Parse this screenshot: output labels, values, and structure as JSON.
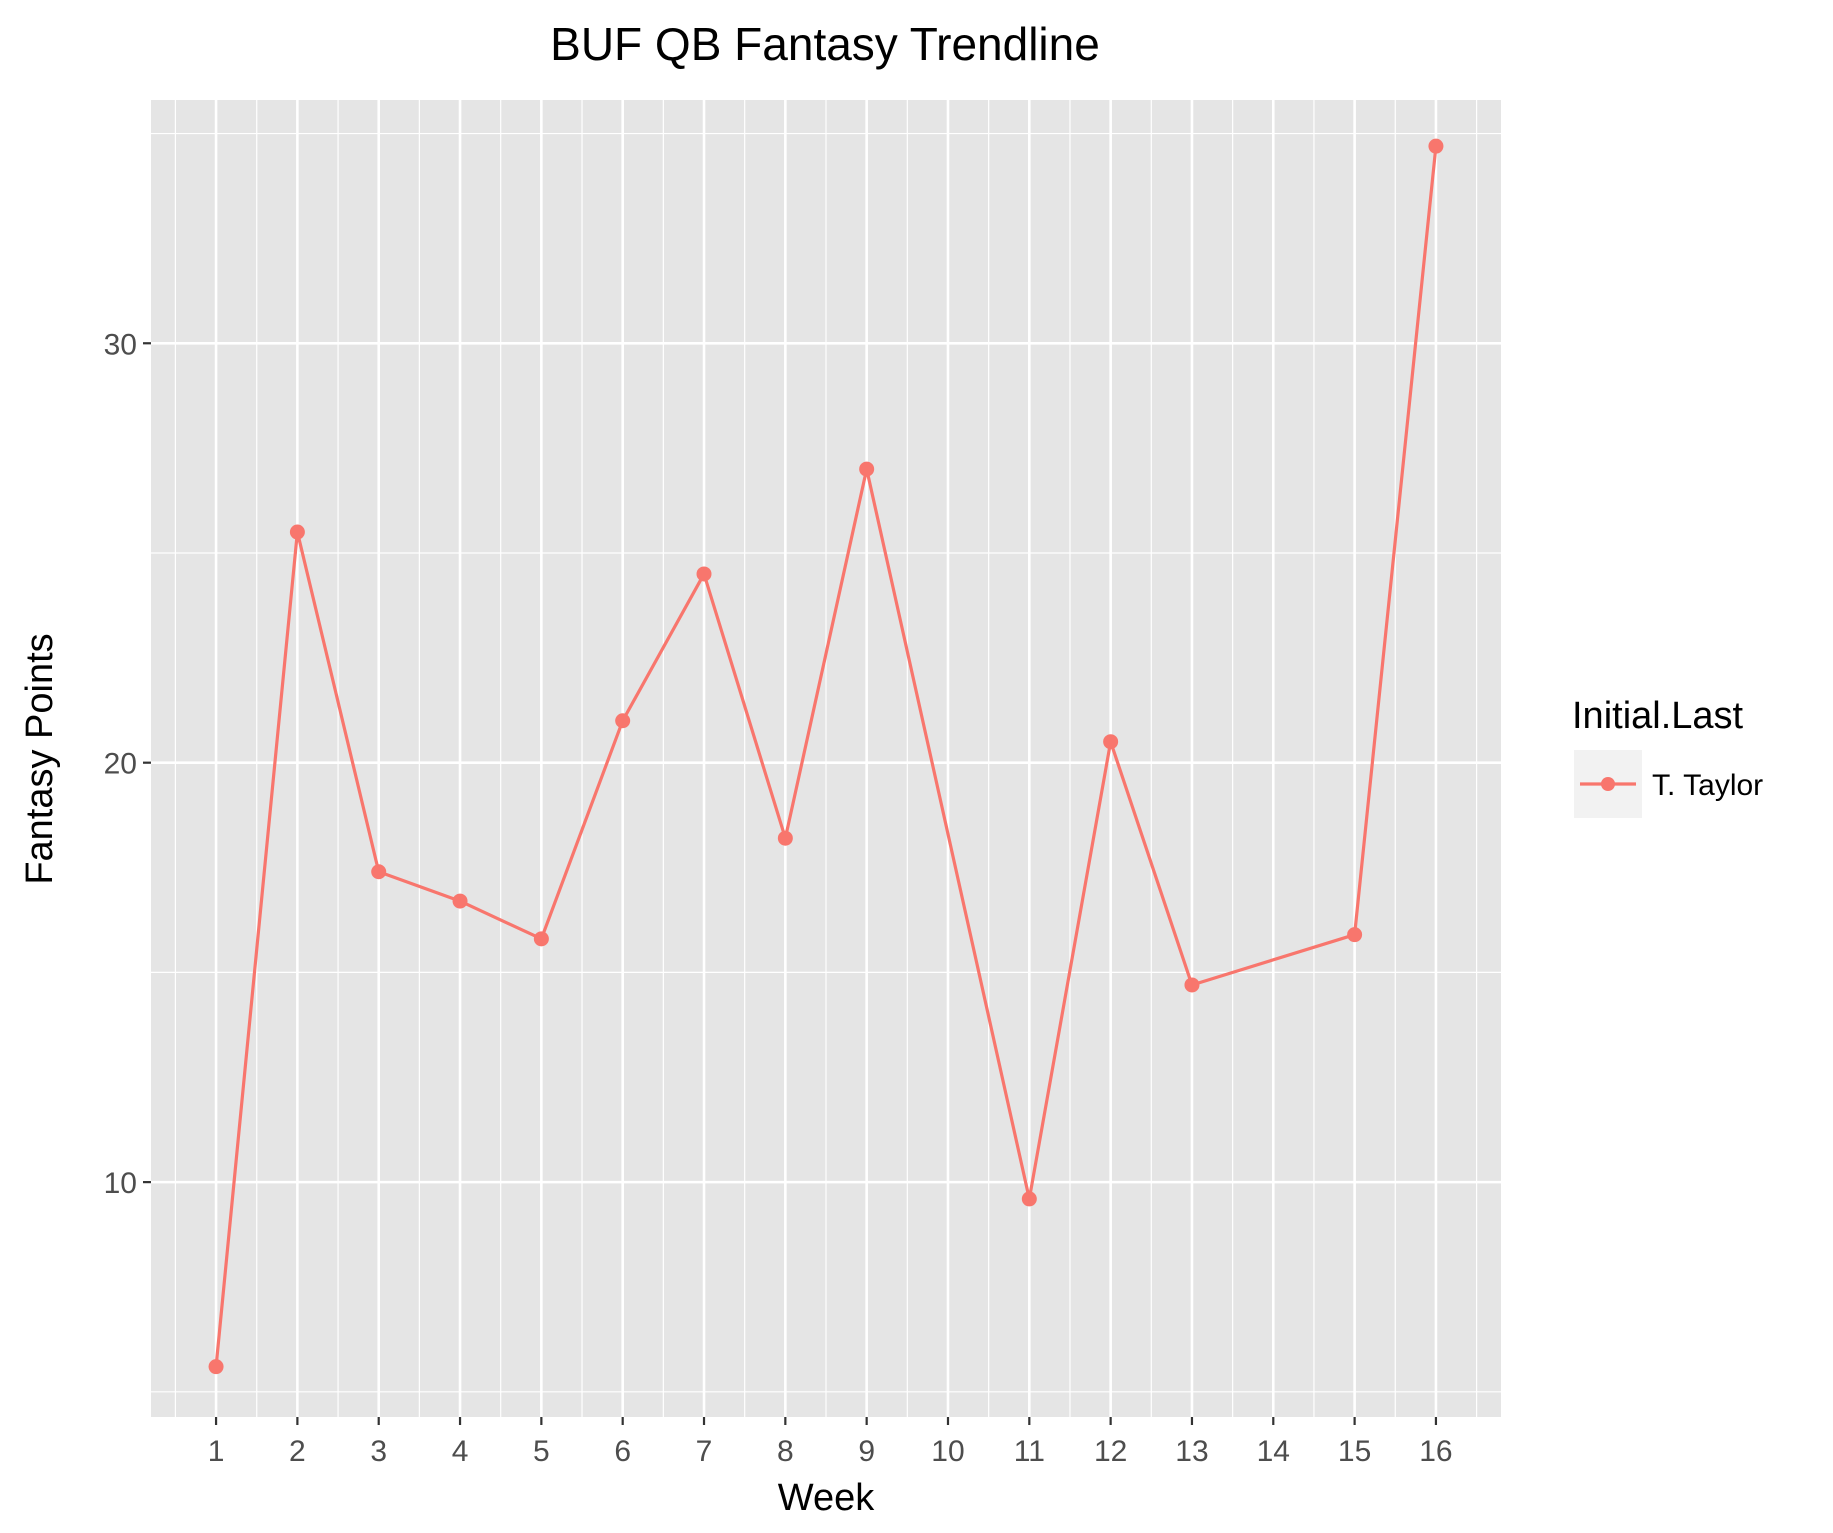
{
  "colors": {
    "panel_background": "#e5e5e5",
    "grid_line": "#ffffff",
    "series": "#f8766d",
    "tick_mark": "#333333",
    "legend_key_background": "#f2f2f2"
  },
  "chart_data": {
    "type": "line",
    "title": "BUF QB Fantasy Trendline",
    "xlabel": "Week",
    "ylabel": "Fantasy Points",
    "x": [
      1,
      2,
      3,
      4,
      5,
      6,
      7,
      8,
      9,
      10,
      11,
      12,
      13,
      14,
      15,
      16
    ],
    "x_ticks": [
      "1",
      "2",
      "3",
      "4",
      "5",
      "6",
      "7",
      "8",
      "9",
      "10",
      "11",
      "12",
      "13",
      "14",
      "15",
      "16"
    ],
    "y_ticks": [
      "10",
      "20",
      "30"
    ],
    "xlim": [
      0.2,
      16.8
    ],
    "ylim": [
      4.4,
      35.8
    ],
    "grid": true,
    "legend": {
      "title": "Initial.Last",
      "position": "right"
    },
    "series": [
      {
        "name": "T. Taylor",
        "color": "#f8766d",
        "points": [
          {
            "x": 1,
            "y": 5.6
          },
          {
            "x": 2,
            "y": 25.5
          },
          {
            "x": 3,
            "y": 17.4
          },
          {
            "x": 4,
            "y": 16.7
          },
          {
            "x": 5,
            "y": 15.8
          },
          {
            "x": 6,
            "y": 21.0
          },
          {
            "x": 7,
            "y": 24.5
          },
          {
            "x": 8,
            "y": 18.2
          },
          {
            "x": 9,
            "y": 27.0
          },
          {
            "x": 11,
            "y": 9.6
          },
          {
            "x": 12,
            "y": 20.5
          },
          {
            "x": 13,
            "y": 14.7
          },
          {
            "x": 15,
            "y": 15.9
          },
          {
            "x": 16,
            "y": 34.7
          }
        ]
      }
    ]
  }
}
